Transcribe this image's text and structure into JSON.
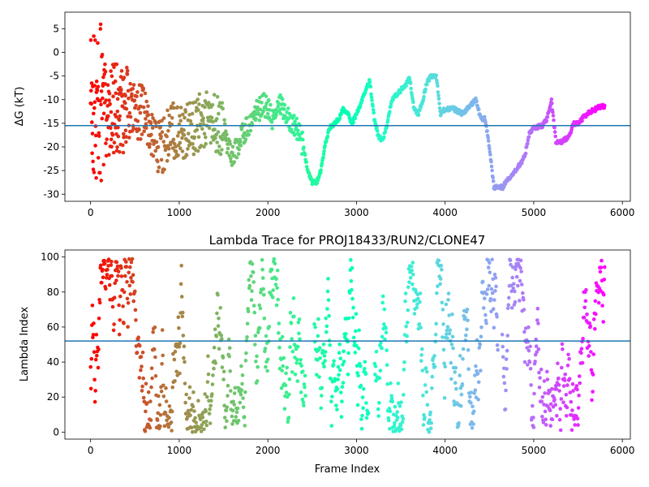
{
  "chart_data": [
    {
      "type": "scatter",
      "title": "",
      "xlabel": "",
      "ylabel": "ΔG (kT)",
      "xlim": [
        -290,
        6090
      ],
      "ylim": [
        -31.5,
        8.5
      ],
      "xticks": [
        "0",
        "1000",
        "2000",
        "3000",
        "4000",
        "5000",
        "6000"
      ],
      "yticks": [
        "5",
        "0",
        "-5",
        "-10",
        "-15",
        "-20",
        "-25",
        "-30"
      ],
      "hline": -15.5,
      "hline_color": "#1f77b4",
      "colormap": "rainbow (red at first frame → violet at last frame)",
      "n_frames": 5800,
      "trace_points": [
        [
          120,
          -10
        ],
        [
          200,
          -12
        ],
        [
          300,
          -14
        ],
        [
          400,
          -13
        ],
        [
          500,
          -12
        ],
        [
          600,
          -13
        ],
        [
          700,
          -18
        ],
        [
          800,
          -20
        ],
        [
          900,
          -17
        ],
        [
          1000,
          -16
        ],
        [
          1100,
          -17
        ],
        [
          1200,
          -15
        ],
        [
          1300,
          -14
        ],
        [
          1400,
          -15
        ],
        [
          1500,
          -16
        ],
        [
          1550,
          -20
        ],
        [
          1600,
          -22
        ],
        [
          1700,
          -18
        ],
        [
          1800,
          -15
        ],
        [
          1850,
          -13
        ],
        [
          1900,
          -12
        ],
        [
          1950,
          -11
        ],
        [
          2000,
          -12
        ],
        [
          2050,
          -14
        ],
        [
          2100,
          -13
        ],
        [
          2150,
          -11
        ],
        [
          2200,
          -13
        ],
        [
          2250,
          -14
        ],
        [
          2300,
          -15
        ],
        [
          2350,
          -17
        ],
        [
          2400,
          -20
        ],
        [
          2450,
          -25
        ],
        [
          2500,
          -27.5
        ],
        [
          2550,
          -27.5
        ],
        [
          2600,
          -25
        ],
        [
          2650,
          -19
        ],
        [
          2700,
          -16
        ],
        [
          2750,
          -15
        ],
        [
          2800,
          -14
        ],
        [
          2850,
          -12
        ],
        [
          2900,
          -13
        ],
        [
          2950,
          -15
        ],
        [
          3000,
          -13
        ],
        [
          3050,
          -11
        ],
        [
          3100,
          -8
        ],
        [
          3150,
          -6
        ],
        [
          3200,
          -14
        ],
        [
          3250,
          -18
        ],
        [
          3300,
          -18.5
        ],
        [
          3350,
          -15
        ],
        [
          3400,
          -10
        ],
        [
          3450,
          -9
        ],
        [
          3500,
          -8
        ],
        [
          3550,
          -7
        ],
        [
          3600,
          -5.5
        ],
        [
          3650,
          -12
        ],
        [
          3700,
          -13
        ],
        [
          3750,
          -10
        ],
        [
          3800,
          -6
        ],
        [
          3850,
          -5
        ],
        [
          3900,
          -5
        ],
        [
          3950,
          -13
        ],
        [
          4000,
          -12
        ],
        [
          4100,
          -12
        ],
        [
          4200,
          -13
        ],
        [
          4300,
          -11
        ],
        [
          4350,
          -10
        ],
        [
          4400,
          -14
        ],
        [
          4450,
          -14
        ],
        [
          4500,
          -20
        ],
        [
          4550,
          -28.5
        ],
        [
          4650,
          -28.5
        ],
        [
          4700,
          -27
        ],
        [
          4800,
          -25
        ],
        [
          4900,
          -22
        ],
        [
          4950,
          -17
        ],
        [
          5000,
          -16
        ],
        [
          5100,
          -15.5
        ],
        [
          5150,
          -14
        ],
        [
          5200,
          -10
        ],
        [
          5250,
          -19
        ],
        [
          5300,
          -19
        ],
        [
          5400,
          -18
        ],
        [
          5450,
          -15
        ],
        [
          5500,
          -15
        ],
        [
          5600,
          -13
        ],
        [
          5700,
          -12
        ],
        [
          5750,
          -11.5
        ],
        [
          5800,
          -11.5
        ]
      ]
    },
    {
      "type": "scatter",
      "title": "Lambda Trace for PROJ18433/RUN2/CLONE47",
      "xlabel": "Frame Index",
      "ylabel": "Lambda Index",
      "xlim": [
        -290,
        6090
      ],
      "ylim": [
        -4,
        104
      ],
      "xticks": [
        "0",
        "1000",
        "2000",
        "3000",
        "4000",
        "5000",
        "6000"
      ],
      "yticks": [
        "0",
        "20",
        "40",
        "60",
        "80",
        "100"
      ],
      "hline": 52,
      "hline_color": "#1f77b4",
      "colormap": "rainbow (red at first frame → violet at last frame)",
      "n_frames": 5800,
      "lambda_min": 0,
      "lambda_max": 99,
      "gaps": [
        [
          2430,
          2520
        ],
        [
          3140,
          3200
        ],
        [
          4600,
          4640
        ]
      ]
    }
  ]
}
